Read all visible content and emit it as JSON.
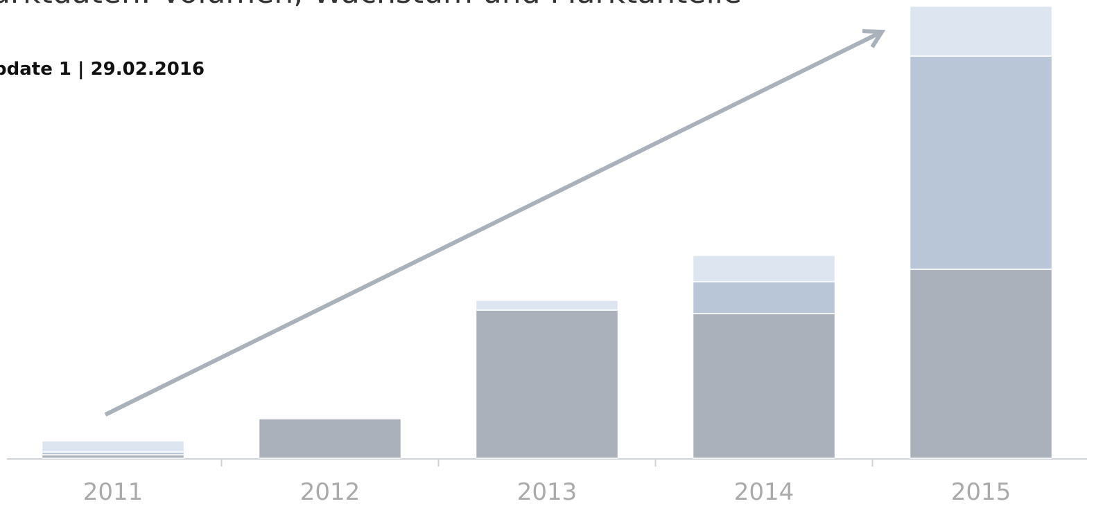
{
  "chart_data": {
    "type": "stacked_bar",
    "title": "arktdaten: Volumen, Wachstum und Marktanteile",
    "subtitle": "pdate 1 | 29.02.2016",
    "categories": [
      "2011",
      "2012",
      "2013",
      "2014",
      "2015"
    ],
    "series": [
      {
        "color": "#aab1bb",
        "values": [
          5,
          57,
          214,
          209,
          273
        ]
      },
      {
        "color": "#b8c6d7",
        "values": [
          4,
          0,
          0,
          46,
          308
        ]
      },
      {
        "color": "#dce5f0",
        "values": [
          16,
          0,
          14,
          38,
          72
        ]
      }
    ],
    "ylim": [
      0,
      653
    ]
  }
}
